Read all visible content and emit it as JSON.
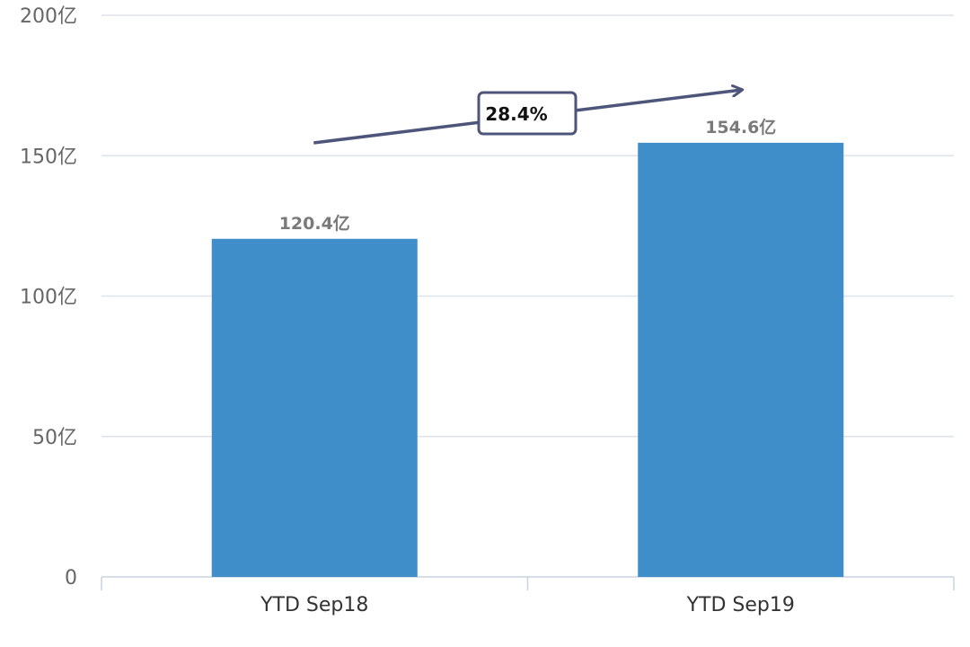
{
  "chart_data": {
    "type": "bar",
    "categories": [
      "YTD Sep18",
      "YTD Sep19"
    ],
    "values": [
      120.4,
      154.6
    ],
    "data_labels": [
      "120.4亿",
      "154.6亿"
    ],
    "yticks": [
      0,
      50,
      100,
      150,
      200
    ],
    "ytick_labels": [
      "0",
      "50亿",
      "100亿",
      "150亿",
      "200亿"
    ],
    "ylim": [
      0,
      200
    ],
    "grid": true,
    "legend": "none",
    "title": "",
    "xlabel": "",
    "ylabel": "",
    "annotation": {
      "text": "28.4%",
      "from_category": "YTD Sep18",
      "to_category": "YTD Sep19"
    },
    "colors": {
      "bar": "#3f8ec9",
      "grid": "#dde3ea",
      "axis": "#c8d4e0",
      "arrow": "#4e557a",
      "tick_text": "#666666",
      "category_text": "#333333",
      "data_label_text": "#7a7a7a"
    }
  }
}
